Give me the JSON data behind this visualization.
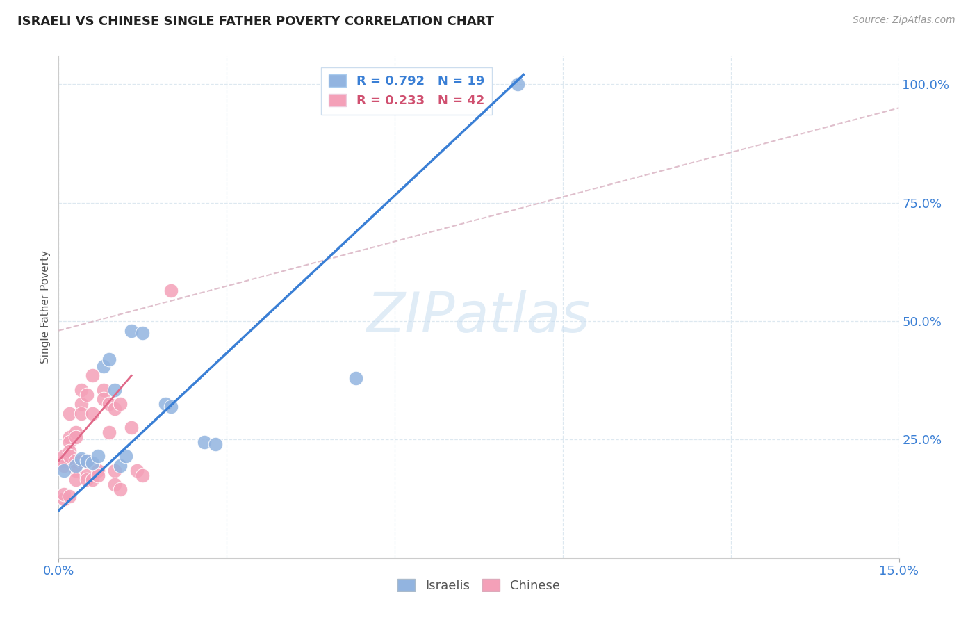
{
  "title": "ISRAELI VS CHINESE SINGLE FATHER POVERTY CORRELATION CHART",
  "source": "Source: ZipAtlas.com",
  "ylabel": "Single Father Poverty",
  "watermark": "ZIPatlas",
  "legend_israeli_R": 0.792,
  "legend_israeli_N": 19,
  "legend_chinese_R": 0.233,
  "legend_chinese_N": 42,
  "israeli_color": "#92b4e0",
  "chinese_color": "#f4a0b8",
  "israeli_line_color": "#3a7fd5",
  "chinese_line_color": "#e06888",
  "diagonal_color": "#d8b0c0",
  "background_color": "#ffffff",
  "grid_color": "#dde8f0",
  "xlim": [
    0.0,
    0.15
  ],
  "ylim": [
    0.0,
    1.06
  ],
  "israeli_line": [
    [
      0.0,
      0.1
    ],
    [
      0.083,
      1.02
    ]
  ],
  "chinese_line": [
    [
      0.0,
      0.205
    ],
    [
      0.013,
      0.385
    ]
  ],
  "diagonal_line": [
    [
      0.0,
      0.48
    ],
    [
      0.15,
      0.95
    ]
  ],
  "israeli_points": [
    [
      0.001,
      0.185
    ],
    [
      0.003,
      0.195
    ],
    [
      0.004,
      0.21
    ],
    [
      0.005,
      0.205
    ],
    [
      0.006,
      0.2
    ],
    [
      0.007,
      0.215
    ],
    [
      0.008,
      0.405
    ],
    [
      0.009,
      0.42
    ],
    [
      0.01,
      0.355
    ],
    [
      0.011,
      0.195
    ],
    [
      0.012,
      0.215
    ],
    [
      0.013,
      0.48
    ],
    [
      0.015,
      0.475
    ],
    [
      0.019,
      0.325
    ],
    [
      0.02,
      0.32
    ],
    [
      0.026,
      0.245
    ],
    [
      0.028,
      0.24
    ],
    [
      0.053,
      0.38
    ],
    [
      0.082,
      1.0
    ]
  ],
  "chinese_points": [
    [
      0.001,
      0.205
    ],
    [
      0.001,
      0.215
    ],
    [
      0.001,
      0.195
    ],
    [
      0.002,
      0.255
    ],
    [
      0.002,
      0.245
    ],
    [
      0.002,
      0.225
    ],
    [
      0.002,
      0.215
    ],
    [
      0.002,
      0.305
    ],
    [
      0.003,
      0.265
    ],
    [
      0.003,
      0.255
    ],
    [
      0.003,
      0.205
    ],
    [
      0.003,
      0.185
    ],
    [
      0.003,
      0.165
    ],
    [
      0.004,
      0.325
    ],
    [
      0.004,
      0.305
    ],
    [
      0.004,
      0.355
    ],
    [
      0.004,
      0.205
    ],
    [
      0.005,
      0.345
    ],
    [
      0.005,
      0.205
    ],
    [
      0.005,
      0.175
    ],
    [
      0.005,
      0.165
    ],
    [
      0.006,
      0.385
    ],
    [
      0.006,
      0.305
    ],
    [
      0.006,
      0.165
    ],
    [
      0.007,
      0.185
    ],
    [
      0.007,
      0.175
    ],
    [
      0.008,
      0.355
    ],
    [
      0.008,
      0.335
    ],
    [
      0.009,
      0.325
    ],
    [
      0.009,
      0.265
    ],
    [
      0.01,
      0.315
    ],
    [
      0.01,
      0.185
    ],
    [
      0.01,
      0.155
    ],
    [
      0.011,
      0.325
    ],
    [
      0.011,
      0.145
    ],
    [
      0.013,
      0.275
    ],
    [
      0.014,
      0.185
    ],
    [
      0.015,
      0.175
    ],
    [
      0.02,
      0.565
    ],
    [
      0.001,
      0.125
    ],
    [
      0.001,
      0.135
    ],
    [
      0.002,
      0.13
    ]
  ]
}
